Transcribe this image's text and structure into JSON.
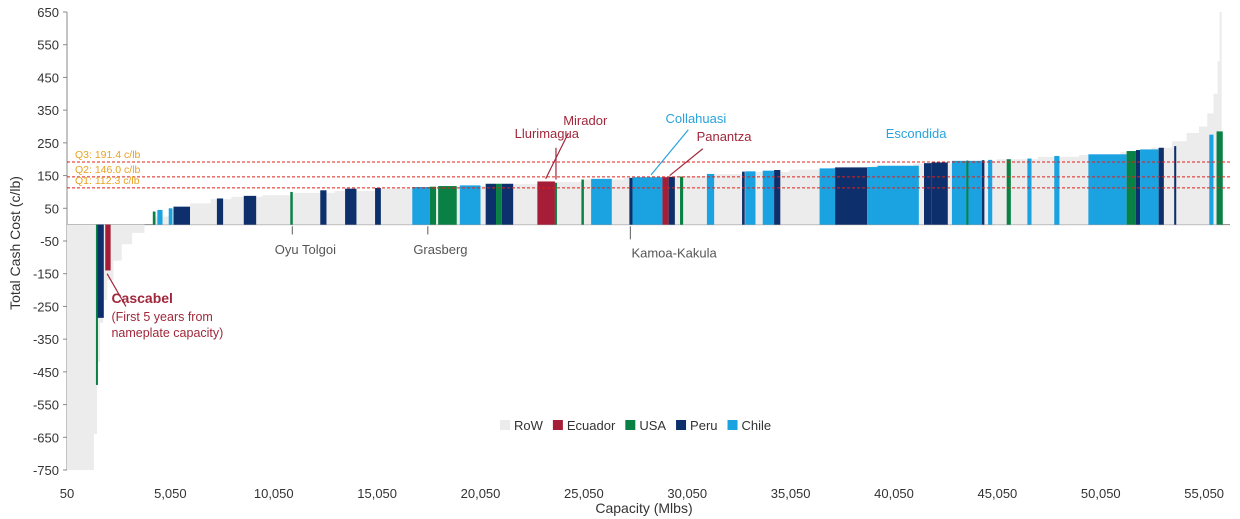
{
  "chart_data": {
    "type": "bar",
    "subtype": "cost-curve",
    "title": "",
    "xlabel": "Capacity (Mlbs)",
    "ylabel": "Total Cash Cost (c/lb)",
    "xlim": [
      50,
      56300
    ],
    "ylim": [
      -750,
      650
    ],
    "xticks": [
      "50",
      "5,050",
      "10,050",
      "15,050",
      "20,050",
      "25,050",
      "30,050",
      "35,050",
      "40,050",
      "45,050",
      "50,050",
      "55,050"
    ],
    "yticks": [
      "650",
      "550",
      "450",
      "350",
      "250",
      "150",
      "50",
      "-50",
      "-150",
      "-250",
      "-350",
      "-450",
      "-550",
      "-650",
      "-750"
    ],
    "legend": {
      "position": "bottom-center",
      "items": [
        {
          "key": "RoW",
          "label": "RoW",
          "color": "#ececec"
        },
        {
          "key": "Ecuador",
          "label": "Ecuador",
          "color": "#a51d36"
        },
        {
          "key": "USA",
          "label": "USA",
          "color": "#0a8144"
        },
        {
          "key": "Peru",
          "label": "Peru",
          "color": "#0d2f6b"
        },
        {
          "key": "Chile",
          "label": "Chile",
          "color": "#1aa3e0"
        }
      ]
    },
    "quartiles": [
      {
        "label": "Q3: 191.4 c/lb",
        "value": 191.4
      },
      {
        "label": "Q2: 146.0 c/lb",
        "value": 146.0
      },
      {
        "label": "Q1: 112.3 c/lb",
        "value": 112.3
      }
    ],
    "row_curve": [
      [
        50,
        -750
      ],
      [
        1300,
        -750
      ],
      [
        1350,
        -640
      ],
      [
        1500,
        -420
      ],
      [
        1650,
        -300
      ],
      [
        1800,
        -230
      ],
      [
        2000,
        -170
      ],
      [
        2300,
        -110
      ],
      [
        2700,
        -60
      ],
      [
        3200,
        -25
      ],
      [
        3800,
        0
      ],
      [
        4300,
        25
      ],
      [
        5000,
        45
      ],
      [
        6000,
        65
      ],
      [
        7000,
        78
      ],
      [
        8000,
        85
      ],
      [
        9500,
        90
      ],
      [
        11000,
        97
      ],
      [
        13000,
        103
      ],
      [
        15000,
        110
      ],
      [
        17000,
        113
      ],
      [
        19000,
        118
      ],
      [
        21000,
        124
      ],
      [
        23000,
        130
      ],
      [
        25000,
        138
      ],
      [
        27000,
        143
      ],
      [
        29000,
        148
      ],
      [
        31000,
        154
      ],
      [
        33000,
        161
      ],
      [
        35000,
        168
      ],
      [
        37000,
        174
      ],
      [
        39000,
        180
      ],
      [
        41000,
        187
      ],
      [
        43000,
        194
      ],
      [
        45000,
        200
      ],
      [
        47000,
        207
      ],
      [
        49000,
        213
      ],
      [
        51000,
        222
      ],
      [
        52500,
        235
      ],
      [
        53500,
        255
      ],
      [
        54200,
        280
      ],
      [
        54800,
        300
      ],
      [
        55200,
        340
      ],
      [
        55500,
        400
      ],
      [
        55700,
        500
      ],
      [
        55800,
        650
      ]
    ],
    "series": [
      {
        "name": "USA",
        "x": 1450,
        "width": 80,
        "value": -490
      },
      {
        "name": "Peru",
        "x": 1530,
        "width": 300,
        "value": -285
      },
      {
        "name": "Ecuador",
        "x": 1900,
        "width": 260,
        "value": -140
      },
      {
        "name": "USA",
        "x": 4200,
        "width": 130,
        "value": 40
      },
      {
        "name": "Chile",
        "x": 4420,
        "width": 250,
        "value": 45
      },
      {
        "name": "Chile",
        "x": 4970,
        "width": 180,
        "value": 50
      },
      {
        "name": "Peru",
        "x": 5200,
        "width": 800,
        "value": 55
      },
      {
        "name": "Peru",
        "x": 7300,
        "width": 300,
        "value": 80
      },
      {
        "name": "Peru",
        "x": 8600,
        "width": 600,
        "value": 88
      },
      {
        "name": "USA",
        "x": 10850,
        "width": 120,
        "value": 100
      },
      {
        "name": "Peru",
        "x": 12300,
        "width": 300,
        "value": 105
      },
      {
        "name": "Peru",
        "x": 13500,
        "width": 550,
        "value": 110
      },
      {
        "name": "Peru",
        "x": 14950,
        "width": 280,
        "value": 112
      },
      {
        "name": "Chile",
        "x": 16750,
        "width": 850,
        "value": 115
      },
      {
        "name": "USA",
        "x": 17600,
        "width": 300,
        "value": 116
      },
      {
        "name": "USA",
        "x": 18000,
        "width": 900,
        "value": 118
      },
      {
        "name": "Chile",
        "x": 19050,
        "width": 1000,
        "value": 120
      },
      {
        "name": "Peru",
        "x": 20300,
        "width": 500,
        "value": 125
      },
      {
        "name": "USA",
        "x": 20800,
        "width": 280,
        "value": 125
      },
      {
        "name": "Peru",
        "x": 21080,
        "width": 550,
        "value": 125
      },
      {
        "name": "Ecuador",
        "x": 22800,
        "width": 850,
        "value": 132
      },
      {
        "name": "USA",
        "x": 23650,
        "width": 80,
        "value": 128
      },
      {
        "name": "USA",
        "x": 24930,
        "width": 120,
        "value": 138
      },
      {
        "name": "Chile",
        "x": 25400,
        "width": 1000,
        "value": 140
      },
      {
        "name": "Peru",
        "x": 27250,
        "width": 150,
        "value": 143
      },
      {
        "name": "Chile",
        "x": 27400,
        "width": 1450,
        "value": 145
      },
      {
        "name": "Ecuador",
        "x": 28850,
        "width": 300,
        "value": 145
      },
      {
        "name": "Peru",
        "x": 29150,
        "width": 300,
        "value": 146
      },
      {
        "name": "USA",
        "x": 29700,
        "width": 150,
        "value": 147
      },
      {
        "name": "Chile",
        "x": 31000,
        "width": 350,
        "value": 155
      },
      {
        "name": "Peru",
        "x": 32700,
        "width": 130,
        "value": 162
      },
      {
        "name": "Chile",
        "x": 32850,
        "width": 500,
        "value": 163
      },
      {
        "name": "Chile",
        "x": 33700,
        "width": 550,
        "value": 165
      },
      {
        "name": "Peru",
        "x": 34250,
        "width": 300,
        "value": 167
      },
      {
        "name": "Chile",
        "x": 36450,
        "width": 750,
        "value": 172
      },
      {
        "name": "Peru",
        "x": 37200,
        "width": 1550,
        "value": 175
      },
      {
        "name": "Chile",
        "x": 38750,
        "width": 500,
        "value": 176
      },
      {
        "name": "Chile",
        "x": 39250,
        "width": 2000,
        "value": 180
      },
      {
        "name": "Peru",
        "x": 41500,
        "width": 350,
        "value": 188
      },
      {
        "name": "Peru",
        "x": 41850,
        "width": 800,
        "value": 190
      },
      {
        "name": "Chile",
        "x": 42850,
        "width": 1450,
        "value": 195
      },
      {
        "name": "USA",
        "x": 43550,
        "width": 80,
        "value": 196
      },
      {
        "name": "Peru",
        "x": 44300,
        "width": 120,
        "value": 197
      },
      {
        "name": "Chile",
        "x": 44600,
        "width": 200,
        "value": 198
      },
      {
        "name": "USA",
        "x": 45500,
        "width": 200,
        "value": 200
      },
      {
        "name": "Chile",
        "x": 46500,
        "width": 200,
        "value": 202
      },
      {
        "name": "Chile",
        "x": 47800,
        "width": 250,
        "value": 210
      },
      {
        "name": "Chile",
        "x": 49450,
        "width": 1850,
        "value": 215
      },
      {
        "name": "USA",
        "x": 51300,
        "width": 450,
        "value": 225
      },
      {
        "name": "Peru",
        "x": 51750,
        "width": 200,
        "value": 228
      },
      {
        "name": "Chile",
        "x": 51950,
        "width": 900,
        "value": 230
      },
      {
        "name": "Peru",
        "x": 52850,
        "width": 250,
        "value": 235
      },
      {
        "name": "Peru",
        "x": 53600,
        "width": 100,
        "value": 240
      },
      {
        "name": "Chile",
        "x": 55300,
        "width": 200,
        "value": 275
      },
      {
        "name": "USA",
        "x": 55650,
        "width": 300,
        "value": 285
      }
    ],
    "annotations": [
      {
        "label": "Cascabel",
        "sublabel_1": "(First 5 years from",
        "sublabel_2": "nameplate capacity)",
        "color": "#a0283b",
        "x": 2200,
        "value": -240
      },
      {
        "label": "Oyu Tolgoi",
        "color": "#555555",
        "x": 10100,
        "value": -90
      },
      {
        "label": "Grasberg",
        "color": "#555555",
        "x": 16800,
        "value": -90
      },
      {
        "label": "Kamoa-Kakula",
        "color": "#555555",
        "x": 27350,
        "value": -100
      },
      {
        "label": "Llurimagua",
        "color": "#a0283b",
        "x": 21700,
        "value": 265
      },
      {
        "label": "Mirador",
        "color": "#a0283b",
        "x": 24050,
        "value": 305
      },
      {
        "label": "Collahuasi",
        "color": "#29a3dc",
        "x": 29000,
        "value": 310
      },
      {
        "label": "Panantza",
        "color": "#a0283b",
        "x": 30500,
        "value": 255
      },
      {
        "label": "Escondida",
        "color": "#29a3dc",
        "x": 39650,
        "value": 265
      }
    ]
  },
  "colors": {
    "quartile_line": "#e0201b",
    "quartile_label": "#e8a21e",
    "axis_text": "#333333"
  }
}
